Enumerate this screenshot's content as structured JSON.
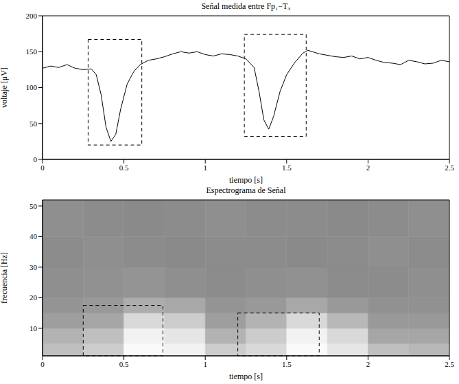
{
  "chart_data": [
    {
      "type": "line",
      "title": "Señal medida entre Fp₁−T₃",
      "xlabel": "tiempo [s]",
      "ylabel": "voltaje [μV]",
      "x": [
        0,
        0.05,
        0.1,
        0.15,
        0.2,
        0.25,
        0.3,
        0.33,
        0.36,
        0.39,
        0.42,
        0.45,
        0.48,
        0.52,
        0.56,
        0.6,
        0.65,
        0.7,
        0.75,
        0.8,
        0.85,
        0.9,
        0.95,
        1.0,
        1.05,
        1.1,
        1.15,
        1.2,
        1.25,
        1.3,
        1.33,
        1.36,
        1.39,
        1.42,
        1.46,
        1.5,
        1.55,
        1.6,
        1.63,
        1.7,
        1.75,
        1.8,
        1.85,
        1.9,
        1.95,
        2.0,
        2.05,
        2.1,
        2.15,
        2.2,
        2.25,
        2.3,
        2.35,
        2.4,
        2.45,
        2.5
      ],
      "values": [
        127,
        130,
        128,
        132,
        127,
        125,
        126,
        118,
        90,
        45,
        25,
        35,
        70,
        105,
        122,
        132,
        138,
        140,
        143,
        147,
        150,
        148,
        150,
        146,
        144,
        147,
        146,
        144,
        140,
        128,
        95,
        55,
        42,
        60,
        95,
        118,
        135,
        148,
        152,
        147,
        145,
        143,
        142,
        144,
        140,
        142,
        138,
        135,
        134,
        132,
        138,
        136,
        133,
        134,
        138,
        136
      ],
      "color": "#000000",
      "xlim": [
        0,
        2.5
      ],
      "ylim": [
        0,
        200
      ],
      "xticks": [
        0,
        0.5,
        1,
        1.5,
        2,
        2.5
      ],
      "yticks": [
        0,
        50,
        100,
        150,
        200
      ],
      "regions": [
        {
          "x": [
            0.28,
            0.61
          ],
          "y": [
            20,
            167
          ]
        },
        {
          "x": [
            1.24,
            1.62
          ],
          "y": [
            32,
            174
          ]
        }
      ]
    },
    {
      "type": "heatmap",
      "title": "Espectrograma de Señal",
      "xlabel": "tiempo [s]",
      "ylabel": "frecuencia [Hz]",
      "x_bins": [
        0,
        0.25,
        0.5,
        0.75,
        1,
        1.25,
        1.5,
        1.75,
        2,
        2.25,
        2.5
      ],
      "y_bins": [
        1,
        5,
        10,
        15,
        20,
        30,
        40,
        52
      ],
      "cells": [
        [
          0.75,
          0.8,
          0.98,
          0.95,
          0.8,
          0.85,
          0.98,
          0.9,
          0.75,
          0.72
        ],
        [
          0.7,
          0.75,
          0.95,
          0.9,
          0.7,
          0.8,
          0.95,
          0.85,
          0.65,
          0.65
        ],
        [
          0.62,
          0.65,
          0.85,
          0.8,
          0.62,
          0.7,
          0.85,
          0.72,
          0.6,
          0.6
        ],
        [
          0.58,
          0.6,
          0.68,
          0.66,
          0.58,
          0.6,
          0.66,
          0.6,
          0.57,
          0.57
        ],
        [
          0.56,
          0.57,
          0.58,
          0.56,
          0.55,
          0.56,
          0.57,
          0.55,
          0.55,
          0.56
        ],
        [
          0.55,
          0.56,
          0.55,
          0.54,
          0.55,
          0.55,
          0.54,
          0.55,
          0.56,
          0.55
        ],
        [
          0.56,
          0.55,
          0.54,
          0.55,
          0.56,
          0.55,
          0.55,
          0.54,
          0.55,
          0.56
        ]
      ],
      "xlim": [
        0,
        2.5
      ],
      "ylim": [
        1,
        52
      ],
      "xticks": [
        0,
        0.5,
        1,
        1.5,
        2,
        2.5
      ],
      "yticks": [
        10,
        20,
        30,
        40,
        50
      ],
      "regions": [
        {
          "x": [
            0.25,
            0.74
          ],
          "y": [
            1,
            17.5
          ]
        },
        {
          "x": [
            1.2,
            1.7
          ],
          "y": [
            1,
            15
          ]
        }
      ]
    }
  ]
}
